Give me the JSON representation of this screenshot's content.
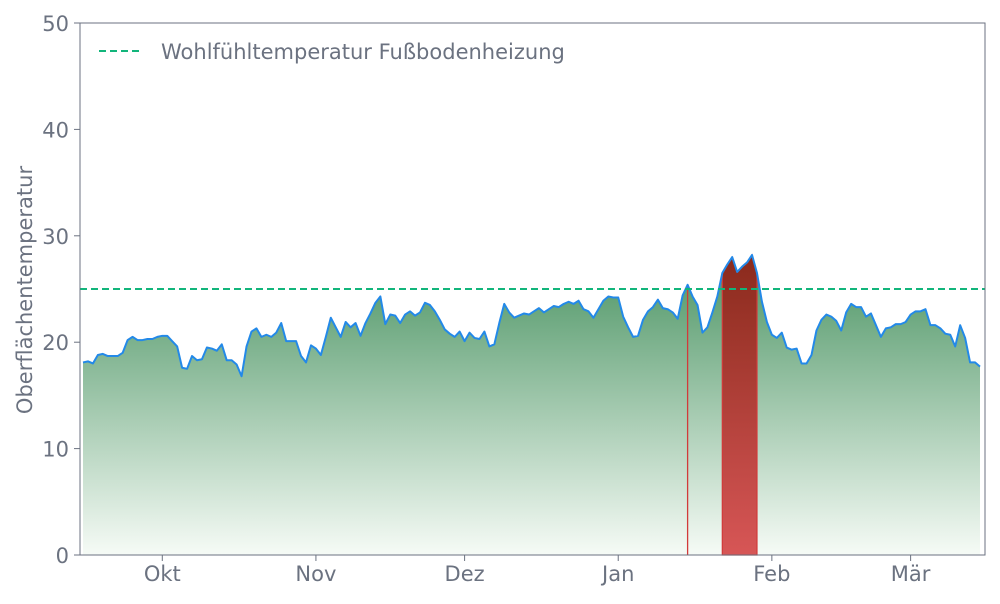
{
  "chart_data": {
    "type": "area",
    "title": "",
    "xlabel": "",
    "ylabel": "Oberflächentemperatur",
    "ylim": [
      0,
      50
    ],
    "yticks": [
      0,
      10,
      20,
      30,
      40,
      50
    ],
    "grid": false,
    "legend_position": "top-left",
    "month_labels": {
      "10": "Okt",
      "11": "Nov",
      "12": "Dez",
      "01": "Jan",
      "02": "Feb",
      "03": "Mär"
    },
    "series": [
      {
        "segments": [
          {
            "month": "09",
            "first_day": 15,
            "values": [
              18.1,
              18.2,
              18.0,
              18.8,
              18.9,
              18.7,
              18.7,
              18.7,
              19.0,
              20.2,
              20.5,
              20.2,
              20.2,
              20.3,
              20.3,
              20.5
            ]
          },
          {
            "month": "10",
            "first_day": 1,
            "values": [
              20.6,
              20.6,
              20.1,
              19.6,
              17.6,
              17.5,
              18.7,
              18.3,
              18.4,
              19.5,
              19.4,
              19.2,
              19.8,
              18.3,
              18.3,
              17.9,
              16.8,
              19.6,
              21.0,
              21.3,
              20.5,
              20.7,
              20.5,
              20.9,
              21.8,
              20.1,
              20.1,
              20.1,
              18.7,
              18.1,
              19.7
            ]
          },
          {
            "month": "11",
            "first_day": 1,
            "values": [
              19.4,
              18.8,
              20.5,
              22.3,
              21.4,
              20.5,
              21.9,
              21.4,
              21.8,
              20.6,
              21.8,
              22.7,
              23.7,
              24.3,
              21.7,
              22.6,
              22.5,
              21.8,
              22.6,
              22.9,
              22.5,
              22.8,
              23.7,
              23.5,
              22.9,
              22.1,
              21.2,
              20.8,
              20.5,
              21.0
            ]
          },
          {
            "month": "12",
            "first_day": 1,
            "values": [
              20.1,
              20.9,
              20.4,
              20.3,
              21.0,
              19.6,
              19.8,
              21.8,
              23.6,
              22.8,
              22.3,
              22.5,
              22.7,
              22.6,
              22.9,
              23.2,
              22.8,
              23.1,
              23.4,
              23.3,
              23.6,
              23.8,
              23.6,
              23.9,
              23.1,
              22.9,
              22.3,
              23.1,
              23.9,
              24.3,
              24.2
            ]
          },
          {
            "month": "01",
            "first_day": 1,
            "values": [
              24.2,
              22.4,
              21.4,
              20.5,
              20.6,
              22.1,
              22.9,
              23.3,
              24.0,
              23.2,
              23.1,
              22.8,
              22.2,
              24.4,
              25.4,
              24.3,
              23.5,
              20.9,
              21.4,
              22.8,
              24.3,
              26.5,
              27.3,
              28.0,
              26.6,
              27.1,
              27.5,
              28.2,
              26.5,
              23.8,
              21.9
            ]
          },
          {
            "month": "02",
            "first_day": 1,
            "values": [
              20.7,
              20.4,
              20.9,
              19.5,
              19.3,
              19.4,
              18.0,
              18.0,
              18.8,
              21.1,
              22.1,
              22.6,
              22.4,
              22.0,
              21.1,
              22.8,
              23.6,
              23.3,
              23.3,
              22.4,
              22.7,
              21.6,
              20.5,
              21.3,
              21.4,
              21.7,
              21.7,
              21.9
            ]
          },
          {
            "month": "03",
            "first_day": 1,
            "values": [
              22.6,
              22.9,
              22.9,
              23.1,
              21.6,
              21.6,
              21.3,
              20.8,
              20.7,
              19.6,
              21.6,
              20.4,
              18.1,
              18.1,
              17.7
            ]
          }
        ]
      }
    ],
    "reference_line": {
      "name": "Wohlfühltemperatur Fußbodenheizung",
      "value": 25,
      "style": "dashed"
    },
    "colors": {
      "line": "#2389e8",
      "fill_top": "#4b9463",
      "fill_bottom": "#f6fbf6",
      "exceed_top": "#8a2a1c",
      "exceed_bottom": "#d75656",
      "exceed_edge": "#d23a3a",
      "reference": "#12b57b",
      "axis": "#6b7280"
    }
  }
}
